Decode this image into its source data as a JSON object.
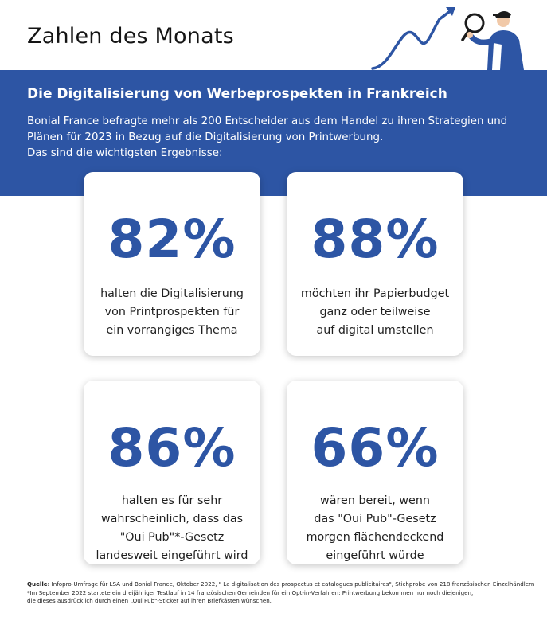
{
  "header": {
    "title": "Zahlen des Monats"
  },
  "banner": {
    "title": "Die Digitalisierung von Werbeprospekten in Frankreich",
    "intro_lines": [
      "Bonial France befragte mehr als 200 Entscheider aus dem Handel zu ihren Strategien und",
      "Plänen für 2023 in Bezug auf die Digitalisierung von Printwerbung.",
      "Das sind die wichtigsten Ergebnisse:"
    ],
    "background_color": "#2d55a4"
  },
  "stats": [
    {
      "value": "82%",
      "lines": [
        "halten die Digitalisierung",
        "von Printprospekten für",
        "ein vorrangiges Thema"
      ]
    },
    {
      "value": "88%",
      "lines": [
        "möchten ihr Papierbudget",
        "ganz oder teilweise",
        "auf digital umstellen"
      ]
    },
    {
      "value": "86%",
      "lines": [
        "halten es für sehr",
        "wahrscheinlich, dass das",
        "\"Oui Pub\"*-Gesetz",
        "landesweit eingeführt wird"
      ]
    },
    {
      "value": "66%",
      "lines": [
        "wären bereit, wenn",
        "das \"Oui Pub\"-Gesetz",
        "morgen flächendeckend",
        "eingeführt würde"
      ]
    }
  ],
  "footnote": {
    "source_label": "Quelle:",
    "source_text": " Infopro-Umfrage für LSA und Bonial France, Oktober 2022, \" La digitalisation des prospectus et catalogues publicitaires\", Stichprobe von 218 französischen Einzelhändlern",
    "note_line_1": "*Im September 2022 startete ein dreijähriger Testlauf in 14 französischen Gemeinden für ein Opt-in-Verfahren: Printwerbung bekommen nur noch diejenigen,",
    "note_line_2": "die dieses ausdrücklich durch einen „Oui Pub\"-Sticker auf ihren Briefkästen wünschen."
  },
  "colors": {
    "accent": "#2d55a4",
    "text": "#1f1f1f"
  },
  "icons": [
    "trend-arrow-icon",
    "person-with-magnifier-icon"
  ]
}
